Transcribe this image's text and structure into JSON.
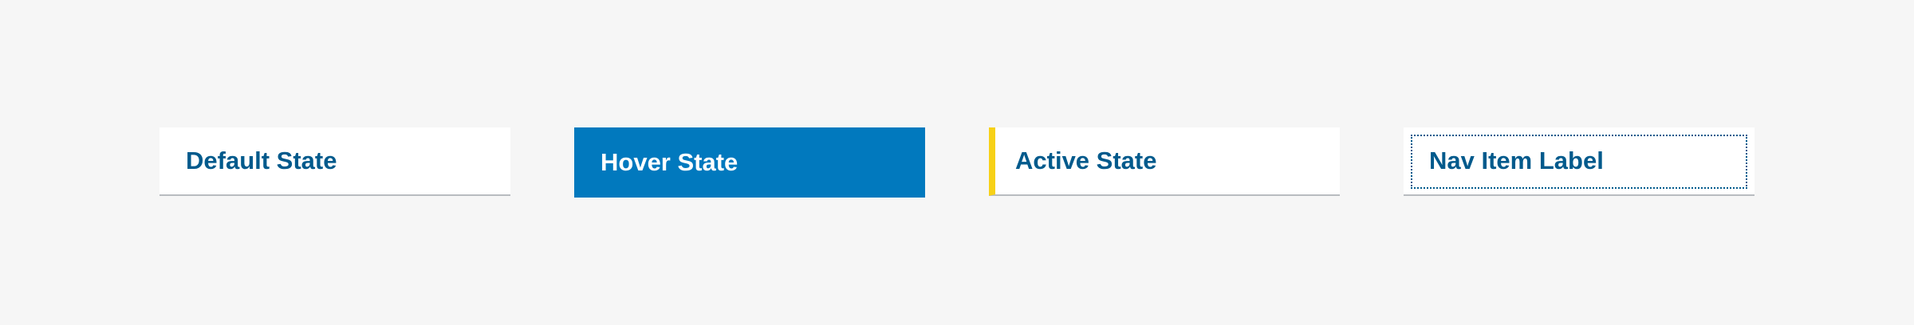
{
  "nav_states": {
    "default": {
      "label": "Default State"
    },
    "hover": {
      "label": "Hover State"
    },
    "active": {
      "label": "Active State"
    },
    "focus": {
      "label": "Nav Item Label"
    }
  },
  "colors": {
    "page_background": "#f6f6f6",
    "item_background": "#ffffff",
    "label_text": "#015a8c",
    "hover_background": "#0179be",
    "hover_text": "#ffffff",
    "active_indicator": "#f7d117",
    "bottom_border": "#b8bcc0",
    "focus_outline": "#015a8c"
  }
}
